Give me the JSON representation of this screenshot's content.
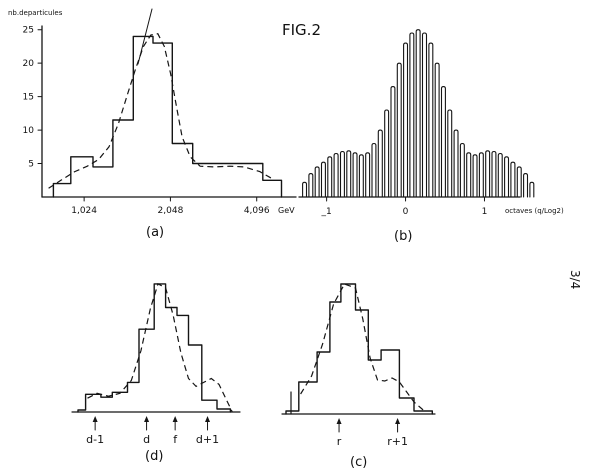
{
  "figure": {
    "title": "FIG.2",
    "side_label": "3/4"
  },
  "chart_data": [
    {
      "panel": "a",
      "type": "bar",
      "caption": "(a)",
      "ylabel": "nb.departicules",
      "xlabel": "GeV",
      "x_scale": "log2",
      "xlim": [
        0.73,
        5.1
      ],
      "ylim": [
        0,
        26
      ],
      "y_ticks": [
        5,
        10,
        15,
        20,
        25
      ],
      "x_ticks": [
        {
          "value": 1.024,
          "label": "1,024"
        },
        {
          "value": 2.048,
          "label": "2,048"
        },
        {
          "value": 4.096,
          "label": "4,096"
        }
      ],
      "bins": [
        {
          "from": 0.8,
          "to": 0.92,
          "value": 2
        },
        {
          "from": 0.92,
          "to": 1.1,
          "value": 6
        },
        {
          "from": 1.1,
          "to": 1.29,
          "value": 4.5
        },
        {
          "from": 1.29,
          "to": 1.52,
          "value": 11.5
        },
        {
          "from": 1.52,
          "to": 1.78,
          "value": 24
        },
        {
          "from": 1.78,
          "to": 2.08,
          "value": 23
        },
        {
          "from": 2.08,
          "to": 2.45,
          "value": 8
        },
        {
          "from": 2.45,
          "to": 2.95,
          "value": 5
        },
        {
          "from": 2.95,
          "to": 4.3,
          "value": 5
        },
        {
          "from": 4.3,
          "to": 5.0,
          "value": 2.5
        }
      ],
      "fit_curve": [
        [
          0.77,
          1.3
        ],
        [
          0.85,
          2.5
        ],
        [
          0.95,
          3.8
        ],
        [
          1.05,
          4.6
        ],
        [
          1.15,
          5.6
        ],
        [
          1.25,
          7.5
        ],
        [
          1.35,
          11
        ],
        [
          1.45,
          15.3
        ],
        [
          1.55,
          19.2
        ],
        [
          1.65,
          22.5
        ],
        [
          1.75,
          24.2
        ],
        [
          1.85,
          24.4
        ],
        [
          1.95,
          22.5
        ],
        [
          2.05,
          18.5
        ],
        [
          2.15,
          13.5
        ],
        [
          2.25,
          9
        ],
        [
          2.4,
          6
        ],
        [
          2.6,
          4.6
        ],
        [
          2.9,
          4.5
        ],
        [
          3.3,
          4.6
        ],
        [
          3.7,
          4.5
        ],
        [
          4.2,
          3.8
        ],
        [
          4.7,
          2.6
        ]
      ]
    },
    {
      "panel": "b",
      "type": "bar",
      "caption": "(b)",
      "xlabel": "octaves (q/Log2)",
      "xlim": [
        -1.35,
        1.45
      ],
      "x_ticks": [
        {
          "value": -1,
          "label": "_1"
        },
        {
          "value": 0,
          "label": "0"
        },
        {
          "value": 1,
          "label": "1"
        }
      ],
      "x_step": 0.08,
      "x_start": -1.28,
      "values": [
        2.2,
        3.5,
        4.5,
        5.2,
        6,
        6.5,
        6.8,
        6.9,
        6.6,
        6.3,
        6.6,
        8,
        10,
        13,
        16.5,
        20,
        23,
        24.5,
        25,
        24.5,
        23,
        20,
        16.5,
        13,
        10,
        8,
        6.6,
        6.3,
        6.6,
        6.9,
        6.8,
        6.5,
        6,
        5.2,
        4.5,
        3.5,
        2.2
      ]
    },
    {
      "panel": "d",
      "type": "bar",
      "caption": "(d)",
      "bins": [
        {
          "from": 0,
          "to": 0.4,
          "value": 0.2
        },
        {
          "from": 0.4,
          "to": 1.2,
          "value": 1.8
        },
        {
          "from": 1.2,
          "to": 1.8,
          "value": 1.5
        },
        {
          "from": 1.8,
          "to": 2.6,
          "value": 2
        },
        {
          "from": 2.6,
          "to": 3.2,
          "value": 3
        },
        {
          "from": 3.2,
          "to": 4.0,
          "value": 8.4
        },
        {
          "from": 4.0,
          "to": 4.6,
          "value": 13
        },
        {
          "from": 4.6,
          "to": 5.2,
          "value": 10.6
        },
        {
          "from": 5.2,
          "to": 5.8,
          "value": 9.8
        },
        {
          "from": 5.8,
          "to": 6.5,
          "value": 6.8
        },
        {
          "from": 6.5,
          "to": 7.3,
          "value": 1.2
        },
        {
          "from": 7.3,
          "to": 8.0,
          "value": 0.3
        }
      ],
      "fit_curve": [
        [
          0.5,
          1.4
        ],
        [
          1,
          1.9
        ],
        [
          1.6,
          1.6
        ],
        [
          2.2,
          1.9
        ],
        [
          2.8,
          3.2
        ],
        [
          3.3,
          6.2
        ],
        [
          3.8,
          10.5
        ],
        [
          4.2,
          13
        ],
        [
          4.6,
          12.6
        ],
        [
          5.0,
          9.8
        ],
        [
          5.4,
          6
        ],
        [
          5.8,
          3.4
        ],
        [
          6.2,
          2.6
        ],
        [
          6.6,
          3
        ],
        [
          7.0,
          3.4
        ],
        [
          7.4,
          2.8
        ],
        [
          7.8,
          1.2
        ],
        [
          8.1,
          0
        ]
      ],
      "x_markers": [
        {
          "label": "d-1",
          "x": 0.9
        },
        {
          "label": "d",
          "x": 3.6
        },
        {
          "label": "f",
          "x": 5.1
        },
        {
          "label": "d+1",
          "x": 6.8
        }
      ]
    },
    {
      "panel": "c",
      "type": "bar",
      "caption": "(c)",
      "bins": [
        {
          "from": 0,
          "to": 0.7,
          "value": 0.3
        },
        {
          "from": 0.7,
          "to": 1.7,
          "value": 3.2
        },
        {
          "from": 1.7,
          "to": 2.4,
          "value": 6.2
        },
        {
          "from": 2.4,
          "to": 3.0,
          "value": 11.2
        },
        {
          "from": 3.0,
          "to": 3.8,
          "value": 13
        },
        {
          "from": 3.8,
          "to": 4.5,
          "value": 10.4
        },
        {
          "from": 4.5,
          "to": 5.2,
          "value": 5.4
        },
        {
          "from": 5.2,
          "to": 6.2,
          "value": 6.4
        },
        {
          "from": 6.2,
          "to": 7.0,
          "value": 1.6
        },
        {
          "from": 7.0,
          "to": 8.0,
          "value": 0.3
        }
      ],
      "fit_curve": [
        [
          0.8,
          2
        ],
        [
          1.4,
          3.8
        ],
        [
          2.0,
          7
        ],
        [
          2.6,
          11
        ],
        [
          3.2,
          13
        ],
        [
          3.8,
          12.6
        ],
        [
          4.2,
          9.5
        ],
        [
          4.6,
          5.6
        ],
        [
          5.0,
          3.4
        ],
        [
          5.4,
          3.3
        ],
        [
          5.8,
          3.6
        ],
        [
          6.2,
          3.2
        ],
        [
          6.6,
          2.2
        ],
        [
          7.0,
          1.2
        ],
        [
          7.5,
          0.4
        ]
      ],
      "x_markers": [
        {
          "label": "r",
          "x": 2.9
        },
        {
          "label": "r+1",
          "x": 6.1
        }
      ]
    }
  ]
}
